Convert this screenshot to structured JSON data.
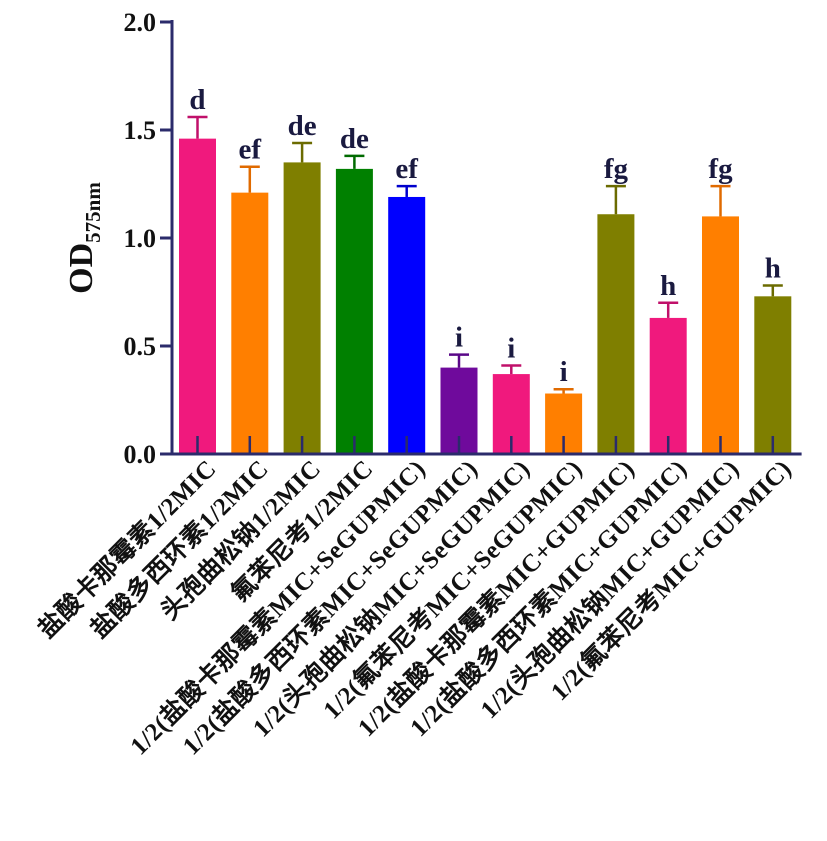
{
  "chart_data": {
    "type": "bar",
    "ylabel_main": "OD",
    "ylabel_sub": "575nm",
    "ylim": [
      0,
      2.0
    ],
    "yticks": [
      "0.0",
      "0.5",
      "1.0",
      "1.5",
      "2.0"
    ],
    "ytick_values": [
      0,
      0.5,
      1.0,
      1.5,
      2.0
    ],
    "grid": false,
    "categories": [
      "盐酸卡那霉素1/2MIC",
      "盐酸多西环素1/2MIC",
      "头孢曲松钠1/2MIC",
      "氟苯尼考1/2MIC",
      "1/2(盐酸卡那霉素MIC+SeGUPMIC)",
      "1/2(盐酸多西环素MIC+SeGUPMIC)",
      "1/2(头孢曲松钠MIC+SeGUPMIC)",
      "1/2(氟苯尼考MIC+SeGUPMIC)",
      "1/2(盐酸卡那霉素MIC+GUPMIC)",
      "1/2(盐酸多西环素MIC+GUPMIC)",
      "1/2(头孢曲松钠MIC+GUPMIC)",
      "1/2(氟苯尼考MIC+GUPMIC)"
    ],
    "values": [
      1.46,
      1.21,
      1.35,
      1.32,
      1.19,
      0.4,
      0.37,
      0.28,
      1.11,
      0.63,
      1.1,
      0.73
    ],
    "errors": [
      0.1,
      0.12,
      0.09,
      0.06,
      0.05,
      0.06,
      0.04,
      0.02,
      0.13,
      0.07,
      0.14,
      0.05
    ],
    "significance": [
      "d",
      "ef",
      "de",
      "de",
      "ef",
      "i",
      "i",
      "i",
      "fg",
      "h",
      "fg",
      "h"
    ],
    "colors": [
      "#f0197d",
      "#ff7f00",
      "#7f7f00",
      "#008000",
      "#0000ff",
      "#6f0a9c",
      "#f0197d",
      "#ff7f00",
      "#7f7f00",
      "#f0197d",
      "#ff7f00",
      "#7f7f00"
    ],
    "error_colors": [
      "#c0106a",
      "#e06a00",
      "#6b6b00",
      "#006a00",
      "#0000cc",
      "#5a0888",
      "#c0106a",
      "#e06a00",
      "#6b6b00",
      "#c0106a",
      "#e06a00",
      "#6b6b00"
    ],
    "axis_color": "#2b2b6b"
  }
}
